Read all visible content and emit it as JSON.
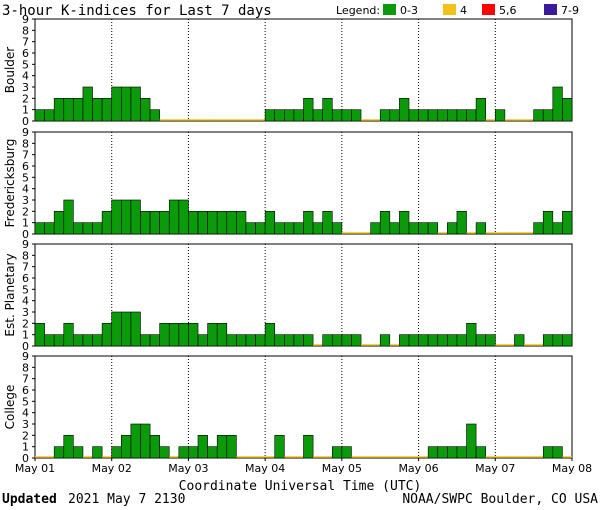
{
  "header": {
    "title": "3-hour K-indices for Last 7 days",
    "legend_label": "Legend:",
    "legend": [
      {
        "label": "0-3",
        "color": "#0a9a0a"
      },
      {
        "label": "4",
        "color": "#f2c21b"
      },
      {
        "label": "5,6",
        "color": "#ff0000"
      },
      {
        "label": "7-9",
        "color": "#3a1a9a"
      }
    ]
  },
  "footer": {
    "updated_label": "Updated",
    "updated_value": "2021 May  7 2130",
    "credit": "NOAA/SWPC Boulder, CO USA"
  },
  "chart_data": {
    "type": "bar",
    "xlabel": "Coordinate Universal Time (UTC)",
    "x_ticks": [
      "May 01",
      "May 02",
      "May 03",
      "May 04",
      "May 05",
      "May 06",
      "May 07",
      "May 08"
    ],
    "ylim": [
      0,
      9
    ],
    "y_ticks": [
      0,
      1,
      2,
      3,
      4,
      5,
      6,
      7,
      8,
      9
    ],
    "bars_per_day": 8,
    "series": [
      {
        "name": "Boulder",
        "values": [
          1,
          1,
          2,
          2,
          2,
          3,
          2,
          2,
          3,
          3,
          3,
          2,
          1,
          0,
          0,
          0,
          0,
          0,
          0,
          0,
          0,
          0,
          0,
          0,
          1,
          1,
          1,
          1,
          2,
          1,
          2,
          1,
          1,
          1,
          0,
          0,
          1,
          1,
          2,
          1,
          1,
          1,
          1,
          1,
          1,
          1,
          2,
          0,
          1,
          0,
          0,
          0,
          1,
          1,
          3,
          2
        ]
      },
      {
        "name": "Fredericksburg",
        "values": [
          1,
          1,
          2,
          3,
          1,
          1,
          1,
          2,
          3,
          3,
          3,
          2,
          2,
          2,
          3,
          3,
          2,
          2,
          2,
          2,
          2,
          2,
          1,
          1,
          2,
          1,
          1,
          1,
          2,
          1,
          2,
          1,
          0,
          0,
          0,
          1,
          2,
          1,
          2,
          1,
          1,
          1,
          0,
          1,
          2,
          0,
          1,
          0,
          0,
          0,
          0,
          0,
          1,
          2,
          1,
          2
        ]
      },
      {
        "name": "Est. Planetary",
        "values": [
          2,
          1,
          1,
          2,
          1,
          1,
          1,
          2,
          3,
          3,
          3,
          1,
          1,
          2,
          2,
          2,
          2,
          1,
          2,
          2,
          1,
          1,
          1,
          1,
          2,
          1,
          1,
          1,
          1,
          0,
          1,
          1,
          1,
          1,
          0,
          0,
          1,
          0,
          1,
          1,
          1,
          1,
          1,
          1,
          1,
          2,
          1,
          1,
          0,
          0,
          1,
          0,
          0,
          1,
          1,
          1
        ]
      },
      {
        "name": "College",
        "values": [
          0,
          0,
          1,
          2,
          1,
          0,
          1,
          0,
          1,
          2,
          3,
          3,
          2,
          1,
          0,
          1,
          1,
          2,
          1,
          2,
          2,
          0,
          0,
          0,
          0,
          2,
          0,
          0,
          2,
          0,
          0,
          1,
          1,
          0,
          0,
          0,
          0,
          0,
          0,
          0,
          0,
          1,
          1,
          1,
          1,
          3,
          1,
          0,
          0,
          0,
          0,
          0,
          0,
          1,
          1,
          0
        ]
      }
    ]
  }
}
